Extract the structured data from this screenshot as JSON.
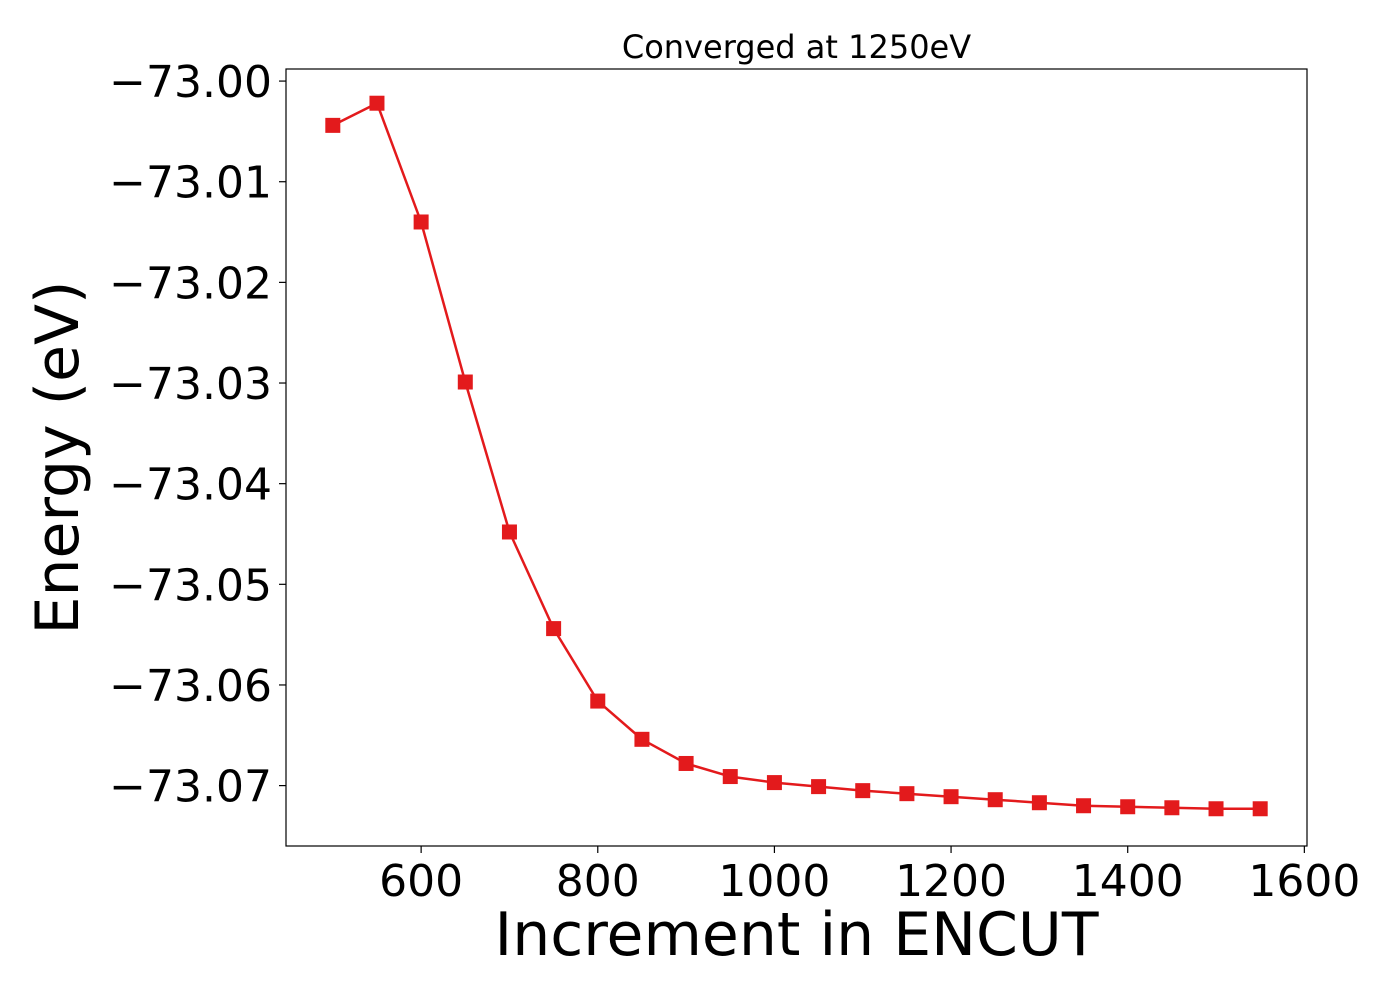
{
  "chart_data": {
    "type": "line",
    "title": "Converged at 1250eV",
    "xlabel": "Increment in ENCUT",
    "ylabel": "Energy (eV)",
    "xlim": [
      447,
      1603
    ],
    "ylim": [
      -73.076,
      -72.9988
    ],
    "x_ticks": [
      600,
      800,
      1000,
      1200,
      1400,
      1600
    ],
    "x_tick_labels": [
      "600",
      "800",
      "1000",
      "1200",
      "1400",
      "1600"
    ],
    "y_ticks": [
      -73.0,
      -73.01,
      -73.02,
      -73.03,
      -73.04,
      -73.05,
      -73.06,
      -73.07
    ],
    "y_tick_labels": [
      "−73.00",
      "−73.01",
      "−73.02",
      "−73.03",
      "−73.04",
      "−73.05",
      "−73.06",
      "−73.07"
    ],
    "grid": false,
    "series": [
      {
        "color": "#e31a1c",
        "marker": "square",
        "x": [
          500,
          550,
          600,
          650,
          700,
          750,
          800,
          850,
          900,
          950,
          1000,
          1050,
          1100,
          1150,
          1200,
          1250,
          1300,
          1350,
          1400,
          1450,
          1500,
          1550
        ],
        "y": [
          -73.0044,
          -73.0022,
          -73.014,
          -73.0299,
          -73.0448,
          -73.0544,
          -73.0616,
          -73.0654,
          -73.0678,
          -73.0691,
          -73.0697,
          -73.0701,
          -73.0705,
          -73.0708,
          -73.0711,
          -73.0714,
          -73.0717,
          -73.072,
          -73.0721,
          -73.0722,
          -73.0723,
          -73.0723
        ]
      }
    ]
  }
}
